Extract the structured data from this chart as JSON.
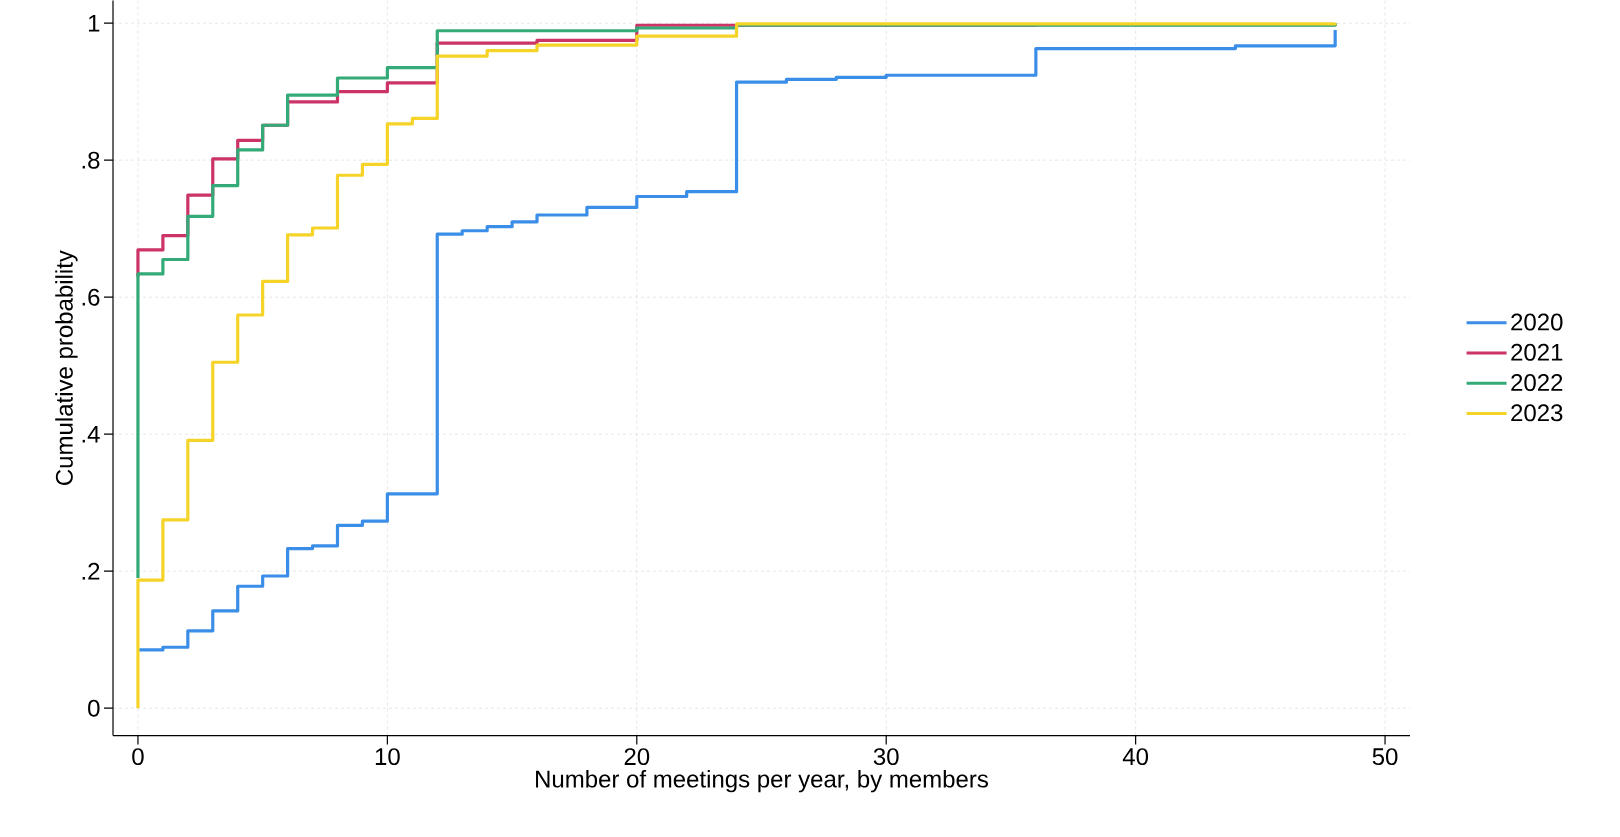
{
  "chart_data": {
    "type": "step",
    "xlabel": "Number of meetings per year, by members",
    "ylabel": "Cumulative probability",
    "xlim": [
      -1,
      51
    ],
    "ylim": [
      -0.04,
      1.033
    ],
    "xticks": [
      0,
      10,
      20,
      30,
      40,
      50
    ],
    "yticks": [
      0,
      {
        "value": 0.2,
        "label": ".2"
      },
      {
        "value": 0.4,
        "label": ".4"
      },
      {
        "value": 0.6,
        "label": ".6"
      },
      {
        "value": 0.8,
        "label": ".8"
      },
      1
    ],
    "grid": true,
    "legend": "right",
    "series": [
      {
        "name": "2020",
        "color": "#3b8ee8",
        "x": [
          0,
          1,
          2,
          3,
          4,
          5,
          6,
          7,
          8,
          9,
          10,
          12,
          13,
          14,
          15,
          16,
          18,
          20,
          22,
          24,
          26,
          28,
          30,
          36,
          44,
          48,
          48
        ],
        "values": [
          0.085,
          0.089,
          0.113,
          0.142,
          0.178,
          0.193,
          0.233,
          0.237,
          0.267,
          0.273,
          0.313,
          0.692,
          0.697,
          0.703,
          0.71,
          0.72,
          0.731,
          0.747,
          0.754,
          0.914,
          0.918,
          0.921,
          0.924,
          0.963,
          0.967,
          0.971,
          0.99
        ]
      },
      {
        "name": "2021",
        "color": "#cc3366",
        "x": [
          0,
          0,
          1,
          2,
          3,
          4,
          5,
          6,
          8,
          10,
          12,
          16,
          20,
          36,
          48
        ],
        "values": [
          0.63,
          0.669,
          0.69,
          0.749,
          0.802,
          0.829,
          0.851,
          0.885,
          0.9,
          0.913,
          0.971,
          0.975,
          0.997,
          0.998,
          1
        ]
      },
      {
        "name": "2022",
        "color": "#33aa77",
        "x": [
          0,
          0,
          1,
          2,
          3,
          4,
          5,
          6,
          8,
          10,
          12,
          20,
          24,
          48
        ],
        "values": [
          0.19,
          0.634,
          0.655,
          0.718,
          0.763,
          0.815,
          0.851,
          0.895,
          0.92,
          0.935,
          0.989,
          0.993,
          0.997,
          1
        ]
      },
      {
        "name": "2023",
        "color": "#f5d327",
        "x": [
          0,
          0,
          1,
          2,
          3,
          4,
          5,
          6,
          7,
          8,
          9,
          10,
          11,
          12,
          14,
          16,
          20,
          24,
          48
        ],
        "values": [
          0,
          0.187,
          0.275,
          0.391,
          0.505,
          0.574,
          0.623,
          0.691,
          0.701,
          0.778,
          0.794,
          0.853,
          0.861,
          0.952,
          0.96,
          0.968,
          0.981,
          0.999,
          1
        ]
      }
    ]
  }
}
